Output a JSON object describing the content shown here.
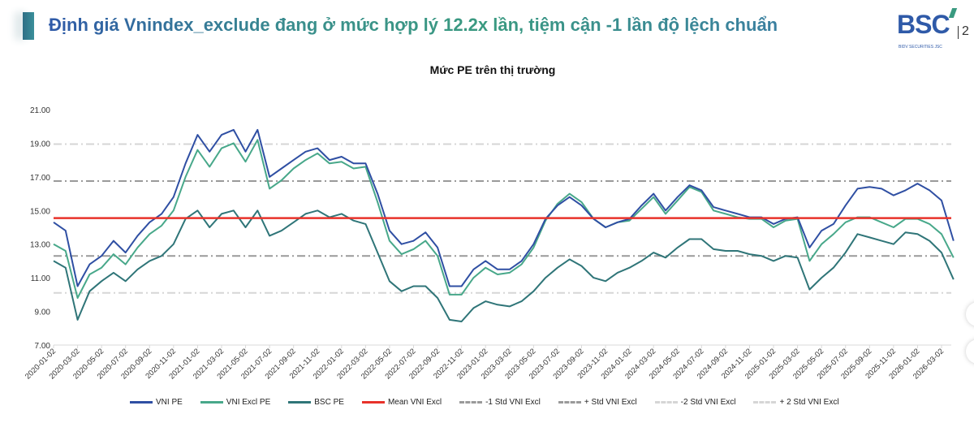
{
  "header": {
    "title": "Định giá Vnindex_exclude đang ở mức hợp lý 12.2x lần, tiệm cận -1 lần độ lệch chuẩn",
    "logo": {
      "text": "BSC",
      "subtitle": "BIDV SECURITIES JSC",
      "suffix": "2"
    }
  },
  "colors": {
    "vni": "#2f4fa3",
    "excl": "#48a88a",
    "bsc": "#2f7578",
    "mean": "#e8322a",
    "std1": "#9a9a9a",
    "std2": "#d6d6d6"
  },
  "chart_data": {
    "type": "line",
    "title": "Mức PE trên thị trường",
    "xlabel": "",
    "ylabel": "",
    "ylim": [
      7,
      21
    ],
    "y_ticks": [
      "7.00",
      "9.00",
      "11.00",
      "13.00",
      "15.00",
      "17.00",
      "19.00",
      "21.00"
    ],
    "x_start": "2020-01",
    "x_step": "monthly",
    "x_tick_labels": [
      "2020-01-02",
      "2020-03-02",
      "2020-05-02",
      "2020-07-02",
      "2020-09-02",
      "2020-11-02",
      "2021-01-02",
      "2021-03-02",
      "2021-05-02",
      "2021-07-02",
      "2021-09-02",
      "2021-11-02",
      "2022-01-02",
      "2022-03-02",
      "2022-05-02",
      "2022-07-02",
      "2022-09-02",
      "2022-11-02",
      "2023-01-02",
      "2023-03-02",
      "2023-05-02",
      "2023-07-02",
      "2023-09-02",
      "2023-11-02",
      "2024-01-02",
      "2024-03-02",
      "2024-05-02",
      "2024-07-02",
      "2024-09-02",
      "2024-11-02",
      "2025-01-02",
      "2025-03-02",
      "2025-05-02",
      "2025-07-02",
      "2025-09-02",
      "2025-11-02",
      "2026-01-02",
      "2026-03-02"
    ],
    "series": [
      {
        "name": "VNI PE",
        "key": "vni",
        "values": [
          14.3,
          13.8,
          10.5,
          11.8,
          12.3,
          13.2,
          12.5,
          13.5,
          14.3,
          14.8,
          15.8,
          17.8,
          19.5,
          18.5,
          19.5,
          19.8,
          18.5,
          19.8,
          17.0,
          17.5,
          18.0,
          18.5,
          18.7,
          18.0,
          18.2,
          17.8,
          17.8,
          16.0,
          13.8,
          13.0,
          13.2,
          13.7,
          12.8,
          10.5,
          10.5,
          11.5,
          12.0,
          11.5,
          11.5,
          12.0,
          13.0,
          14.5,
          15.3,
          15.8,
          15.3,
          14.5,
          14.0,
          14.3,
          14.5,
          15.3,
          16.0,
          15.0,
          15.8,
          16.5,
          16.2,
          15.2,
          15.0,
          14.8,
          14.6,
          14.6,
          14.2,
          14.5,
          14.6,
          12.8,
          13.8,
          14.2,
          15.3,
          16.3,
          16.4,
          16.3,
          15.9,
          16.2,
          16.6,
          16.2,
          15.6,
          13.2
        ]
      },
      {
        "name": "VNI Excl PE",
        "key": "excl",
        "values": [
          13.0,
          12.6,
          9.8,
          11.2,
          11.6,
          12.4,
          11.8,
          12.8,
          13.6,
          14.1,
          15.0,
          17.0,
          18.6,
          17.6,
          18.7,
          19.0,
          17.9,
          19.2,
          16.3,
          16.8,
          17.5,
          18.0,
          18.4,
          17.8,
          17.9,
          17.5,
          17.6,
          15.5,
          13.2,
          12.4,
          12.7,
          13.2,
          12.3,
          10.0,
          10.0,
          11.0,
          11.6,
          11.2,
          11.3,
          11.8,
          12.8,
          14.4,
          15.4,
          16.0,
          15.5,
          14.5,
          14.0,
          14.3,
          14.4,
          15.1,
          15.8,
          14.8,
          15.6,
          16.4,
          16.1,
          15.0,
          14.8,
          14.6,
          14.5,
          14.5,
          14.0,
          14.4,
          14.5,
          12.0,
          13.0,
          13.6,
          14.3,
          14.6,
          14.6,
          14.3,
          14.0,
          14.5,
          14.5,
          14.2,
          13.6,
          12.2
        ]
      },
      {
        "name": "BSC PE",
        "key": "bsc",
        "values": [
          12.0,
          11.6,
          8.5,
          10.2,
          10.8,
          11.3,
          10.8,
          11.5,
          12.0,
          12.3,
          13.0,
          14.5,
          15.0,
          14.0,
          14.8,
          15.0,
          14.0,
          15.0,
          13.5,
          13.8,
          14.3,
          14.8,
          15.0,
          14.6,
          14.8,
          14.4,
          14.2,
          12.5,
          10.8,
          10.2,
          10.5,
          10.5,
          9.8,
          8.5,
          8.4,
          9.2,
          9.6,
          9.4,
          9.3,
          9.6,
          10.2,
          11.0,
          11.6,
          12.1,
          11.7,
          11.0,
          10.8,
          11.3,
          11.6,
          12.0,
          12.5,
          12.2,
          12.8,
          13.3,
          13.3,
          12.7,
          12.6,
          12.6,
          12.4,
          12.3,
          12.0,
          12.3,
          12.2,
          10.3,
          11.0,
          11.6,
          12.5,
          13.6,
          13.4,
          13.2,
          13.0,
          13.7,
          13.6,
          13.2,
          12.5,
          10.9
        ]
      }
    ],
    "reference_lines": [
      {
        "name": "Mean VNI Excl",
        "key": "mean",
        "value": 14.55
      },
      {
        "name": "-1 Std VNI Excl",
        "key": "std1",
        "value": 12.3
      },
      {
        "name": "+ Std VNI Excl",
        "key": "std1",
        "value": 16.75
      },
      {
        "name": "-2 Std VNI Excl",
        "key": "std2",
        "value": 10.1
      },
      {
        "name": "+ 2 Std VNI Excl",
        "key": "std2",
        "value": 18.95
      }
    ],
    "legend": "bottom",
    "grid": false
  }
}
